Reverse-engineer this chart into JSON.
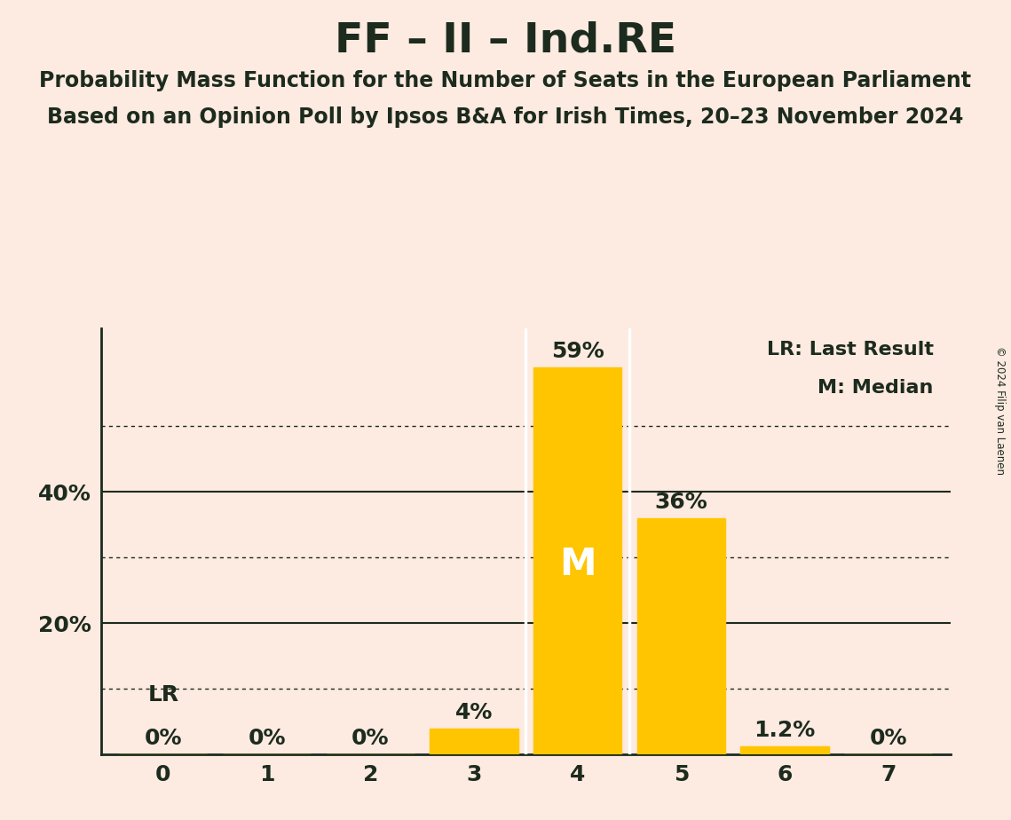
{
  "title": "FF – II – Ind.RE",
  "subtitle1": "Probability Mass Function for the Number of Seats in the European Parliament",
  "subtitle2": "Based on an Opinion Poll by Ipsos B&A for Irish Times, 20–23 November 2024",
  "copyright": "© 2024 Filip van Laenen",
  "categories": [
    0,
    1,
    2,
    3,
    4,
    5,
    6,
    7
  ],
  "values": [
    0.0,
    0.0,
    0.0,
    4.0,
    59.0,
    36.0,
    1.2,
    0.0
  ],
  "bar_color": "#FFC500",
  "background_color": "#FDEAE0",
  "text_color": "#1C2B1E",
  "median_seat": 4,
  "lr_seat": 0,
  "ylim": [
    0,
    65
  ],
  "yticks": [
    20,
    40
  ],
  "dotted_lines": [
    10,
    30,
    50
  ],
  "legend_lr": "LR: Last Result",
  "legend_m": "M: Median",
  "title_fontsize": 34,
  "subtitle_fontsize": 17,
  "bar_label_fontsize": 18,
  "tick_fontsize": 18,
  "bar_width": 0.85
}
